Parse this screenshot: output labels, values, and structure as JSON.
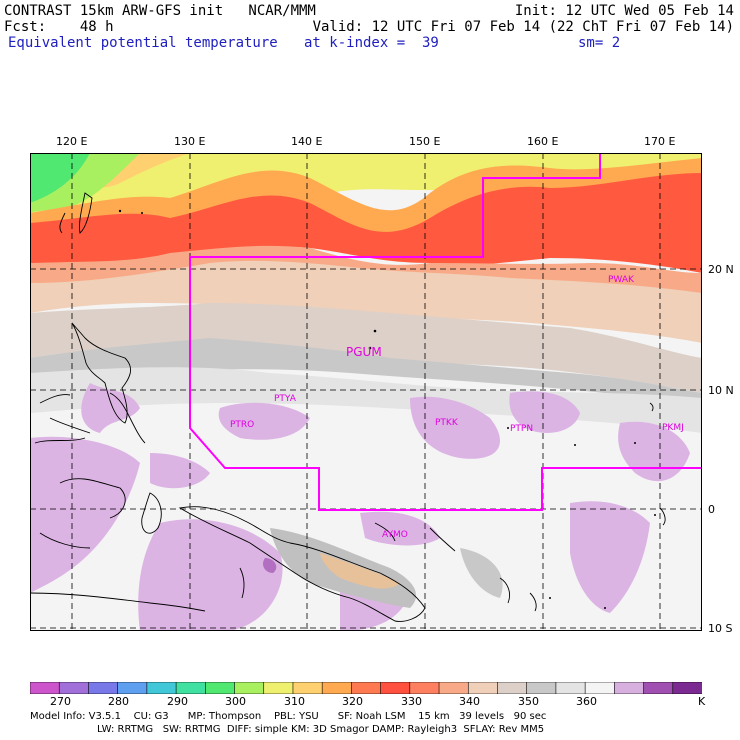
{
  "header": {
    "line1_left": "CONTRAST 15km ARW-GFS init   NCAR/MMM",
    "line1_right": "Init: 12 UTC Wed 05 Feb 14",
    "line2_left": "Fcst:    48 h",
    "line2_right": "Valid: 12 UTC Fri 07 Feb 14 (22 ChT Fri 07 Feb 14)",
    "field_name": "Equivalent potential temperature",
    "level": "at k-index =  39",
    "smoothing": "sm= 2"
  },
  "map": {
    "lon_labels": [
      "120 E",
      "130 E",
      "140 E",
      "150 E",
      "160 E",
      "170 E"
    ],
    "lat_labels": [
      "20 N",
      "10 N",
      "0",
      "10 S"
    ],
    "stations": [
      "PWAK",
      "PGUM",
      "PTYA",
      "PTRO",
      "PTKK",
      "PTPN",
      "PKMJ",
      "AYMO"
    ],
    "boundary_color": "#ff00ff"
  },
  "colorbar": {
    "colors": [
      "#cc55cc",
      "#a070d8",
      "#7878e8",
      "#5f9ff0",
      "#40c8d8",
      "#40e0a0",
      "#50e870",
      "#a8f060",
      "#f0f070",
      "#ffd070",
      "#ffaa50",
      "#ff7a50",
      "#ff5040",
      "#ff8060",
      "#f8aa88",
      "#f0d0b8",
      "#dcd0c8",
      "#c8c8c8",
      "#e4e4e4",
      "#f4f4f4",
      "#d8b0e0",
      "#a050b0",
      "#7a2a90"
    ],
    "labels": [
      "270",
      "280",
      "290",
      "300",
      "310",
      "320",
      "330",
      "340",
      "350",
      "360",
      "K"
    ]
  },
  "model_info": {
    "line1": "Model Info: V3.5.1    CU: G3      MP: Thompson    PBL: YSU      SF: Noah LSM    15 km   39 levels   90 sec",
    "line2": "LW: RRTMG   SW: RRTMG  DIFF: simple KM: 3D Smagor DAMP: Rayleigh3  SFLAY: Rev MM5"
  }
}
